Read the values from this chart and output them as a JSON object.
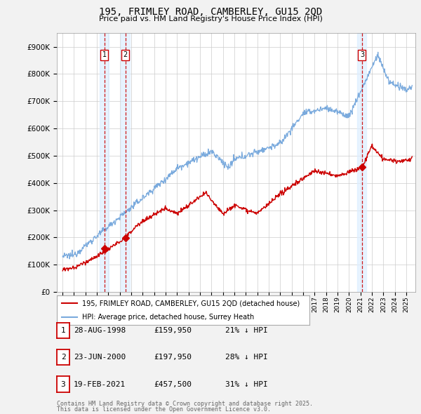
{
  "title": "195, FRIMLEY ROAD, CAMBERLEY, GU15 2QD",
  "subtitle": "Price paid vs. HM Land Registry's House Price Index (HPI)",
  "legend_label_red": "195, FRIMLEY ROAD, CAMBERLEY, GU15 2QD (detached house)",
  "legend_label_blue": "HPI: Average price, detached house, Surrey Heath",
  "transactions": [
    {
      "num": 1,
      "date": "28-AUG-1998",
      "price": 159950,
      "year": 1998.65,
      "pct": "21%",
      "dir": "↓"
    },
    {
      "num": 2,
      "date": "23-JUN-2000",
      "price": 197950,
      "year": 2000.47,
      "pct": "28%",
      "dir": "↓"
    },
    {
      "num": 3,
      "date": "19-FEB-2021",
      "price": 457500,
      "year": 2021.13,
      "pct": "31%",
      "dir": "↓"
    }
  ],
  "footer_line1": "Contains HM Land Registry data © Crown copyright and database right 2025.",
  "footer_line2": "This data is licensed under the Open Government Licence v3.0.",
  "ylim_max": 950000,
  "xlim_min": 1994.5,
  "xlim_max": 2025.8,
  "red_color": "#cc0000",
  "blue_color": "#7aaadd",
  "dashed_color": "#cc0000",
  "background_color": "#f2f2f2",
  "plot_bg_color": "#ffffff",
  "shade_color": "#ddeeff"
}
